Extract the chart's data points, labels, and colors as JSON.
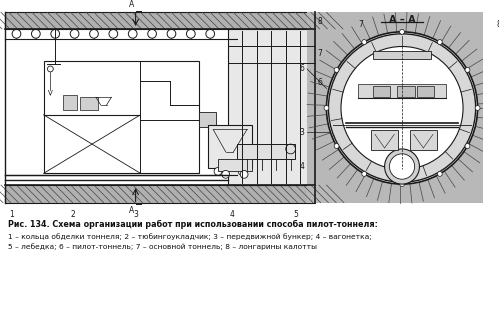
{
  "caption_bold": "Рис. 134. Схема организации работ при использовании способа пилот-тоннеля:",
  "caption_line1": "1 – кольца обделки тоннеля; 2 – тюбингоукладчик; 3 – передвижной бункер; 4 – вагонетка;",
  "caption_line2": "5 – лебедка; 6 – пилот-тоннель; 7 – основной тоннель; 8 – лонгарины калотты",
  "bg_color": "#ffffff",
  "line_color": "#1a1a1a",
  "fig_width": 4.99,
  "fig_height": 3.09,
  "dpi": 100
}
